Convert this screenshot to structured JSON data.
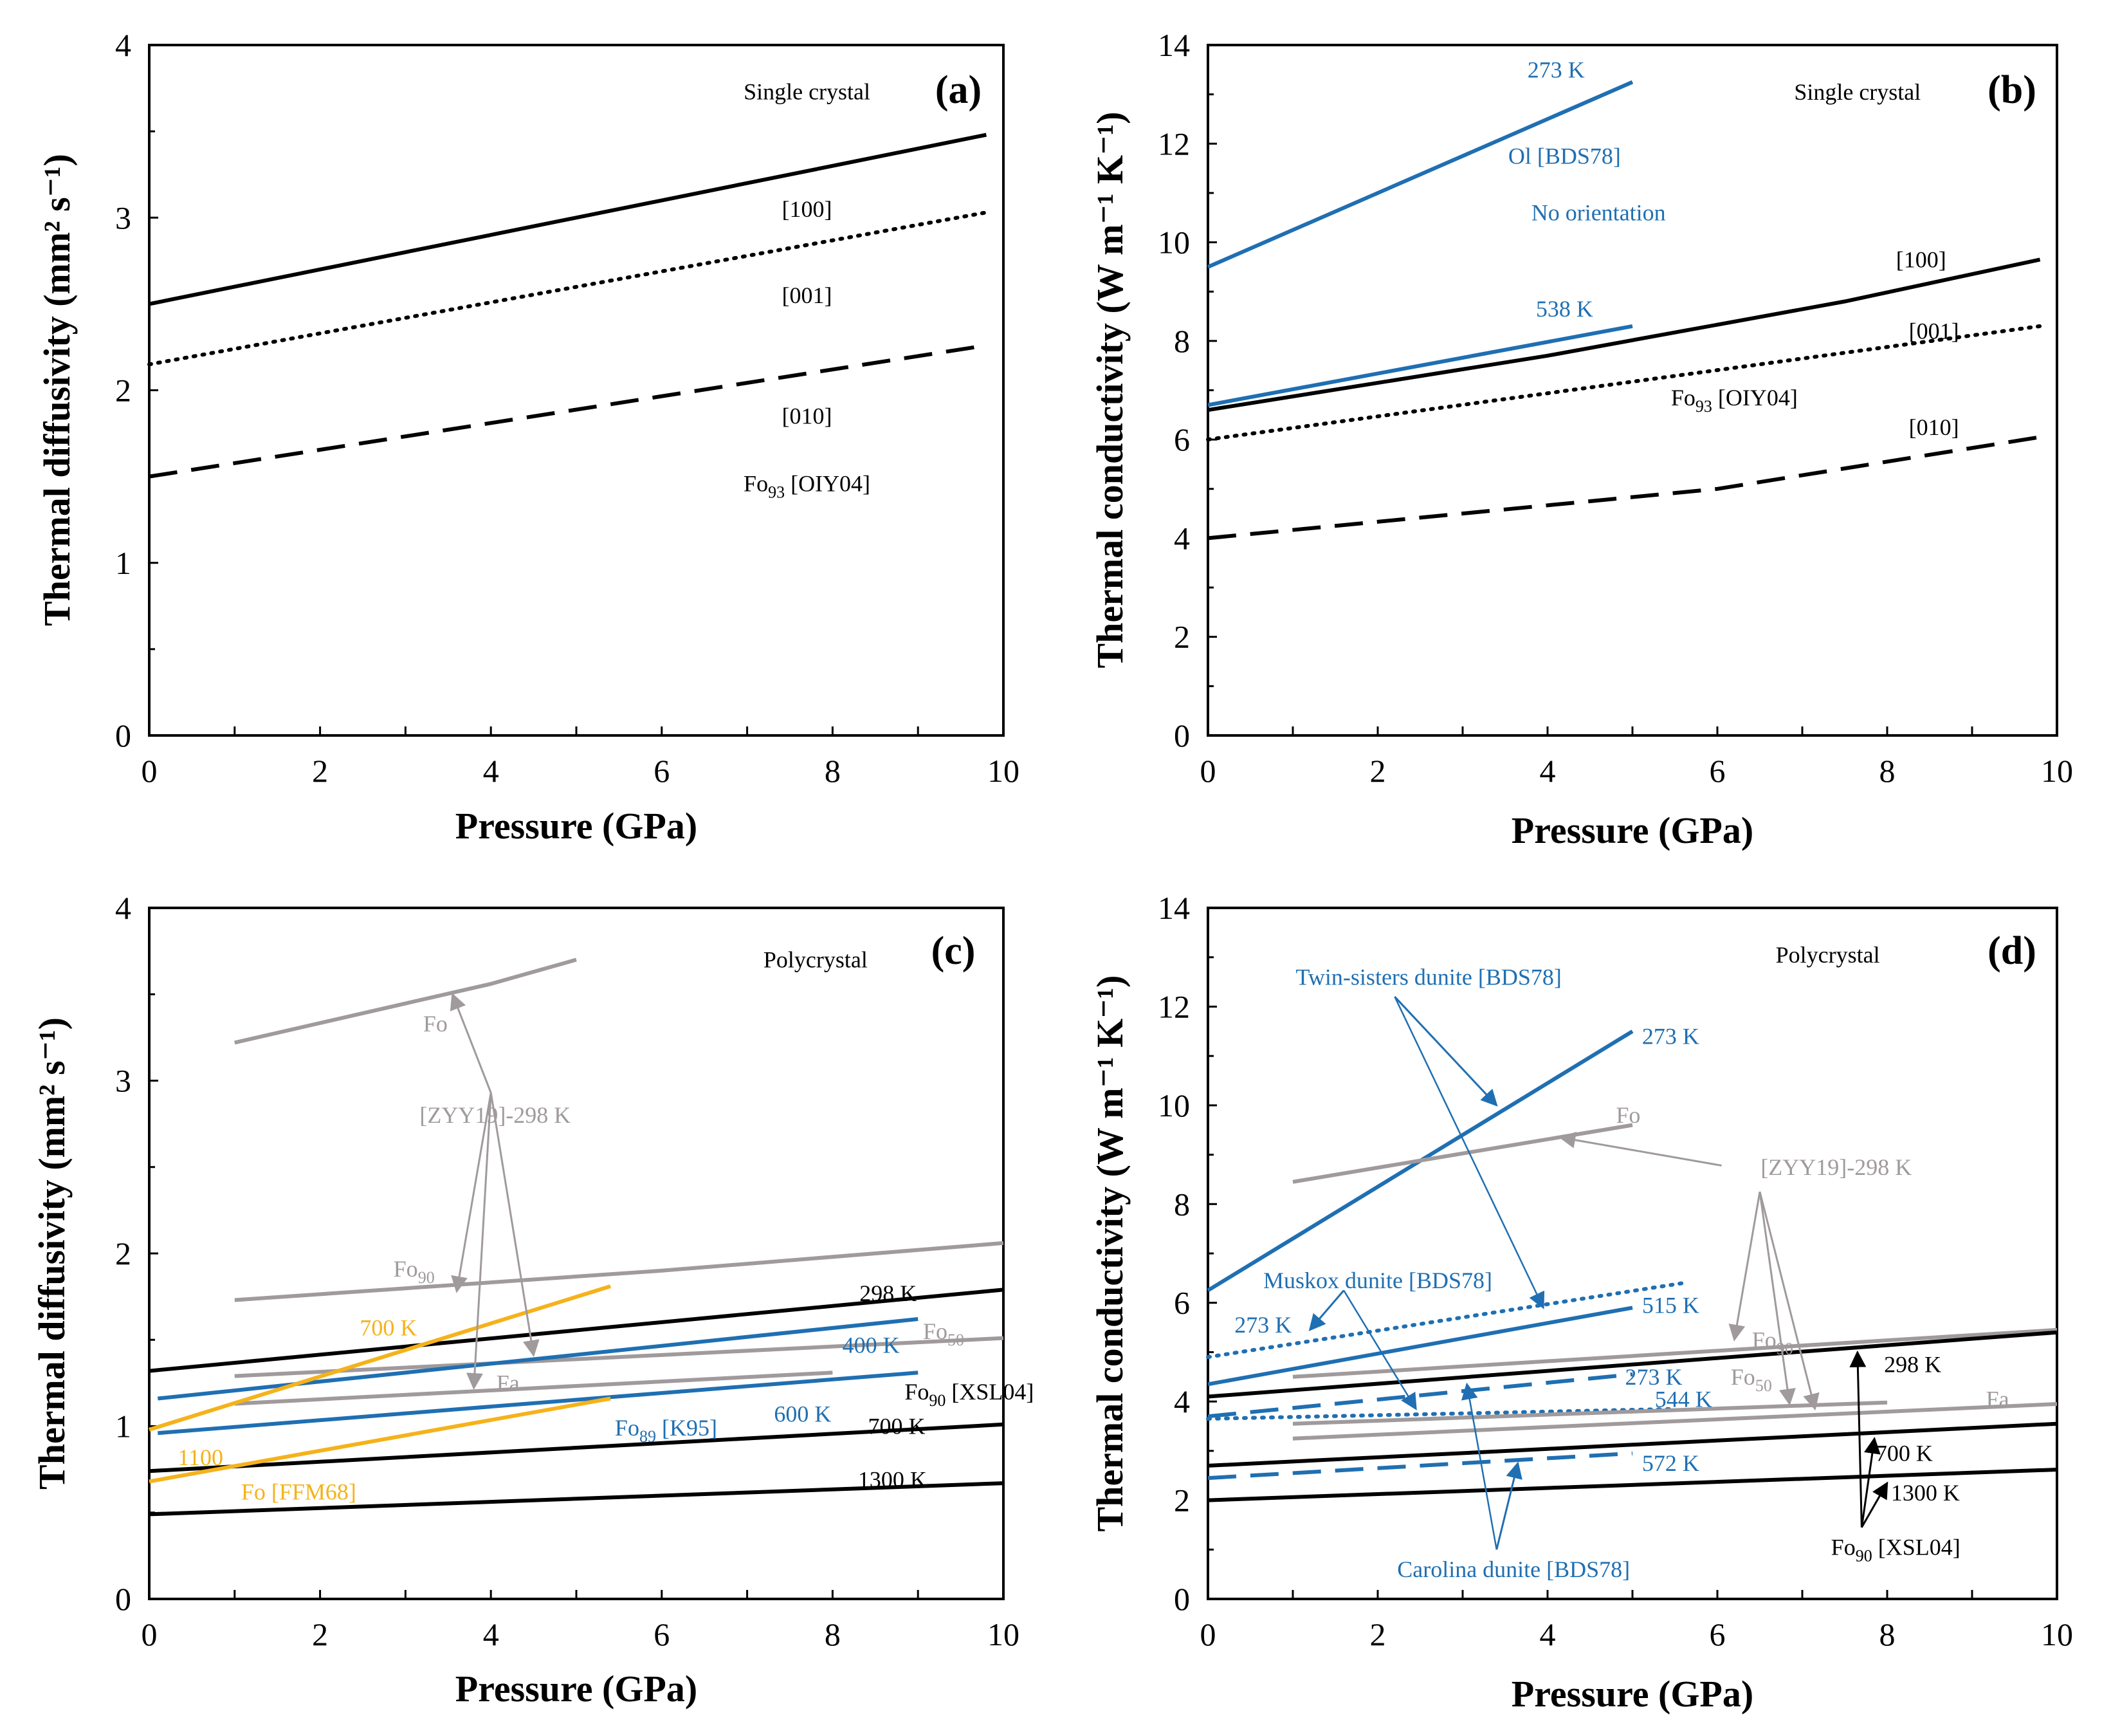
{
  "figure": {
    "colors": {
      "black": "#000000",
      "blue": "#1f6fb2",
      "gray": "#a09a9c",
      "orange": "#f5b21a"
    }
  },
  "chart_data": [
    {
      "type": "line",
      "panel": "(a)",
      "title": "Single crystal",
      "xlabel": "Pressure (GPa)",
      "ylabel": "Thermal diffusivity (mm² s⁻¹)",
      "xlim": [
        0,
        10
      ],
      "ylim": [
        0,
        4
      ],
      "xticks": [
        0,
        2,
        4,
        6,
        8,
        10
      ],
      "yticks": [
        0,
        1,
        2,
        3,
        4
      ],
      "series": [
        {
          "name": "[100]",
          "style": "solid",
          "color": "black",
          "x": [
            0,
            9.8
          ],
          "y": [
            2.5,
            3.48
          ]
        },
        {
          "name": "[001]",
          "style": "dotted",
          "color": "black",
          "x": [
            0,
            9.8
          ],
          "y": [
            2.15,
            3.03
          ]
        },
        {
          "name": "[010]",
          "style": "dashed",
          "color": "black",
          "x": [
            0,
            9.8
          ],
          "y": [
            1.5,
            2.26
          ]
        }
      ],
      "annotations": [
        {
          "text": "Single crystal",
          "x": 7.7,
          "y": 3.73,
          "color": "black"
        },
        {
          "text": "[100]",
          "x": 7.7,
          "y": 3.05,
          "color": "black"
        },
        {
          "text": "[001]",
          "x": 7.7,
          "y": 2.55,
          "color": "black"
        },
        {
          "text": "[010]",
          "x": 7.7,
          "y": 1.85,
          "color": "black"
        },
        {
          "text": "Fo",
          "sub": "93",
          "tail": " [OIY04]",
          "x": 7.7,
          "y": 1.46,
          "color": "black"
        }
      ],
      "arrows": []
    },
    {
      "type": "line",
      "panel": "(b)",
      "title": "Single crystal",
      "xlabel": "Pressure (GPa)",
      "ylabel": "Thermal conductivity (W m⁻¹ K⁻¹)",
      "xlim": [
        0,
        10
      ],
      "ylim": [
        0,
        14
      ],
      "xticks": [
        0,
        2,
        4,
        6,
        8,
        10
      ],
      "yticks": [
        0,
        2,
        4,
        6,
        8,
        10,
        12,
        14
      ],
      "series": [
        {
          "name": "Ol 273 K",
          "style": "solid",
          "color": "blue",
          "x": [
            0,
            5
          ],
          "y": [
            9.5,
            13.25
          ]
        },
        {
          "name": "Ol 538 K",
          "style": "solid",
          "color": "blue",
          "x": [
            0,
            5
          ],
          "y": [
            6.7,
            8.3
          ]
        },
        {
          "name": "[100]",
          "style": "solid",
          "color": "black",
          "x": [
            0,
            4,
            7.5,
            9.8
          ],
          "y": [
            6.6,
            7.7,
            8.8,
            9.65
          ]
        },
        {
          "name": "[001]",
          "style": "dotted",
          "color": "black",
          "x": [
            0,
            9.8
          ],
          "y": [
            6.0,
            8.3
          ]
        },
        {
          "name": "[010]",
          "style": "dashed",
          "color": "black",
          "x": [
            0,
            6,
            9.8
          ],
          "y": [
            4.0,
            5.0,
            6.05
          ]
        }
      ],
      "annotations": [
        {
          "text": "273 K",
          "x": 4.1,
          "y": 13.5,
          "color": "blue"
        },
        {
          "text": "Ol [BDS78]",
          "x": 4.2,
          "y": 11.75,
          "color": "blue"
        },
        {
          "text": "No orientation",
          "x": 4.6,
          "y": 10.6,
          "color": "blue"
        },
        {
          "text": "538 K",
          "x": 4.2,
          "y": 8.65,
          "color": "blue"
        },
        {
          "text": "Single crystal",
          "x": 7.65,
          "y": 13.05,
          "color": "black"
        },
        {
          "text": "[100]",
          "x": 8.4,
          "y": 9.65,
          "color": "black"
        },
        {
          "text": "[001]",
          "x": 8.55,
          "y": 8.2,
          "color": "black"
        },
        {
          "text": "Fo",
          "sub": "93",
          "tail": " [OIY04]",
          "x": 6.2,
          "y": 6.85,
          "color": "black"
        },
        {
          "text": "[010]",
          "x": 8.55,
          "y": 6.25,
          "color": "black"
        }
      ],
      "arrows": []
    },
    {
      "type": "line",
      "panel": "(c)",
      "title": "Polycrystal",
      "xlabel": "Pressure (GPa)",
      "ylabel": "Thermal diffusivity (mm² s⁻¹)",
      "xlim": [
        0,
        10
      ],
      "ylim": [
        0,
        4
      ],
      "xticks": [
        0,
        2,
        4,
        6,
        8,
        10
      ],
      "yticks": [
        0,
        1,
        2,
        3,
        4
      ],
      "series": [
        {
          "name": "Fo [ZYY19] 298 K",
          "style": "solid",
          "color": "gray",
          "x": [
            1,
            4,
            5
          ],
          "y": [
            3.22,
            3.56,
            3.7
          ]
        },
        {
          "name": "Fo90 [ZYY19] 298 K",
          "style": "solid",
          "color": "gray",
          "x": [
            1,
            6,
            10
          ],
          "y": [
            1.73,
            1.9,
            2.06
          ]
        },
        {
          "name": "Fo50 [ZYY19] 298 K",
          "style": "solid",
          "color": "gray",
          "x": [
            1,
            10
          ],
          "y": [
            1.29,
            1.51
          ]
        },
        {
          "name": "Fa [ZYY19] 298 K",
          "style": "solid",
          "color": "gray",
          "x": [
            1,
            8
          ],
          "y": [
            1.13,
            1.31
          ]
        },
        {
          "name": "Fo90 [XSL04] 298 K",
          "style": "solid",
          "color": "black",
          "x": [
            0,
            10
          ],
          "y": [
            1.32,
            1.79
          ]
        },
        {
          "name": "Fo90 [XSL04] 700 K",
          "style": "solid",
          "color": "black",
          "x": [
            0,
            10
          ],
          "y": [
            0.74,
            1.01
          ]
        },
        {
          "name": "Fo90 [XSL04] 1300 K",
          "style": "solid",
          "color": "black",
          "x": [
            0,
            10
          ],
          "y": [
            0.49,
            0.67
          ]
        },
        {
          "name": "Fo89 [K95] 400 K",
          "style": "solid",
          "color": "blue",
          "x": [
            0.1,
            9
          ],
          "y": [
            1.16,
            1.62
          ]
        },
        {
          "name": "Fo89 [K95] 600 K",
          "style": "solid",
          "color": "blue",
          "x": [
            0.1,
            9
          ],
          "y": [
            0.96,
            1.31
          ]
        },
        {
          "name": "Fo [FFM68] 700 K",
          "style": "solid",
          "color": "orange",
          "x": [
            0,
            5.4
          ],
          "y": [
            0.98,
            1.81
          ]
        },
        {
          "name": "Fo [FFM68] 1100 K",
          "style": "solid",
          "color": "orange",
          "x": [
            0,
            5.4
          ],
          "y": [
            0.68,
            1.16
          ]
        }
      ],
      "annotations": [
        {
          "text": "Polycrystal",
          "x": 7.8,
          "y": 3.7,
          "color": "black"
        },
        {
          "text": "Fo",
          "x": 3.35,
          "y": 3.33,
          "color": "gray"
        },
        {
          "text": "[ZYY19]-298 K",
          "x": 4.05,
          "y": 2.8,
          "color": "gray"
        },
        {
          "text": "Fo",
          "sub": "90",
          "tail": "",
          "x": 3.1,
          "y": 1.91,
          "color": "gray"
        },
        {
          "text": "298 K",
          "x": 8.65,
          "y": 1.77,
          "color": "black"
        },
        {
          "text": "700 K",
          "x": 2.8,
          "y": 1.57,
          "color": "orange"
        },
        {
          "text": "Fo",
          "sub": "50",
          "tail": "",
          "x": 9.3,
          "y": 1.55,
          "color": "gray"
        },
        {
          "text": "400 K",
          "x": 8.45,
          "y": 1.47,
          "color": "blue"
        },
        {
          "text": "Fa",
          "x": 4.2,
          "y": 1.25,
          "color": "gray"
        },
        {
          "text": "Fo",
          "sub": "90",
          "tail": " [XSL04]",
          "x": 9.6,
          "y": 1.2,
          "color": "black"
        },
        {
          "text": "600 K",
          "x": 7.65,
          "y": 1.07,
          "color": "blue"
        },
        {
          "text": "700 K",
          "x": 8.75,
          "y": 1.0,
          "color": "black"
        },
        {
          "text": "Fo",
          "sub": "89",
          "tail": " [K95]",
          "x": 6.05,
          "y": 0.99,
          "color": "blue"
        },
        {
          "text": "1100",
          "x": 0.6,
          "y": 0.82,
          "color": "orange"
        },
        {
          "text": "Fo [FFM68]",
          "x": 1.75,
          "y": 0.62,
          "color": "orange"
        },
        {
          "text": "1300 K",
          "x": 8.7,
          "y": 0.69,
          "color": "black"
        }
      ],
      "arrows": [
        {
          "from": [
            4.0,
            2.93
          ],
          "to": [
            3.55,
            3.5
          ],
          "color": "gray"
        },
        {
          "from": [
            4.0,
            2.93
          ],
          "to": [
            3.6,
            1.78
          ],
          "color": "gray"
        },
        {
          "from": [
            4.0,
            2.93
          ],
          "to": [
            3.8,
            1.22
          ],
          "color": "gray"
        },
        {
          "from": [
            4.0,
            2.93
          ],
          "to": [
            4.5,
            1.41
          ],
          "color": "gray"
        }
      ]
    },
    {
      "type": "line",
      "panel": "(d)",
      "title": "Polycrystal",
      "xlabel": "Pressure (GPa)",
      "ylabel": "Thermal conductivity (W m⁻¹ K⁻¹)",
      "xlim": [
        0,
        10
      ],
      "ylim": [
        0,
        14
      ],
      "xticks": [
        0,
        2,
        4,
        6,
        8,
        10
      ],
      "yticks": [
        0,
        2,
        4,
        6,
        8,
        10,
        12,
        14
      ],
      "series": [
        {
          "name": "Twin-sisters dunite [BDS78] 273 K",
          "style": "solid",
          "color": "blue",
          "x": [
            0,
            5
          ],
          "y": [
            6.25,
            11.5
          ]
        },
        {
          "name": "Twin-sisters dunite [BDS78] 515 K",
          "style": "solid",
          "color": "blue",
          "x": [
            0,
            5
          ],
          "y": [
            4.35,
            5.9
          ]
        },
        {
          "name": "Muskox dunite [BDS78] 273 K",
          "style": "dotted",
          "color": "blue",
          "x": [
            0,
            5.6
          ],
          "y": [
            4.9,
            6.4
          ]
        },
        {
          "name": "Muskox dunite [BDS78] 544 K",
          "style": "dotted",
          "color": "blue",
          "x": [
            0,
            5.5
          ],
          "y": [
            3.65,
            3.85
          ]
        },
        {
          "name": "Carolina dunite [BDS78] 273 K",
          "style": "dashed",
          "color": "blue",
          "x": [
            0,
            5
          ],
          "y": [
            3.7,
            4.55
          ]
        },
        {
          "name": "Carolina dunite [BDS78] 572 K",
          "style": "dashed",
          "color": "blue",
          "x": [
            0,
            5
          ],
          "y": [
            2.45,
            2.95
          ]
        },
        {
          "name": "Fo [ZYY19] 298 K",
          "style": "solid",
          "color": "gray",
          "x": [
            1,
            5
          ],
          "y": [
            8.45,
            9.6
          ]
        },
        {
          "name": "Fo90 [ZYY19] 298 K",
          "style": "solid",
          "color": "gray",
          "x": [
            1,
            10
          ],
          "y": [
            4.5,
            5.45
          ]
        },
        {
          "name": "Fo50 [ZYY19] 298 K",
          "style": "solid",
          "color": "gray",
          "x": [
            1,
            8
          ],
          "y": [
            3.55,
            3.98
          ]
        },
        {
          "name": "Fa [ZYY19] 298 K",
          "style": "solid",
          "color": "gray",
          "x": [
            1,
            10
          ],
          "y": [
            3.25,
            3.95
          ]
        },
        {
          "name": "Fo90 [XSL04] 298 K",
          "style": "solid",
          "color": "black",
          "x": [
            0,
            10
          ],
          "y": [
            4.1,
            5.4
          ]
        },
        {
          "name": "Fo90 [XSL04] 700 K",
          "style": "solid",
          "color": "black",
          "x": [
            0,
            10
          ],
          "y": [
            2.7,
            3.55
          ]
        },
        {
          "name": "Fo90 [XSL04] 1300 K",
          "style": "solid",
          "color": "black",
          "x": [
            0,
            10
          ],
          "y": [
            2.0,
            2.62
          ]
        }
      ],
      "annotations": [
        {
          "text": "Polycrystal",
          "x": 7.3,
          "y": 13.05,
          "color": "black"
        },
        {
          "text": "Twin-sisters dunite [BDS78]",
          "x": 2.6,
          "y": 12.6,
          "color": "blue"
        },
        {
          "text": "273 K",
          "x": 5.45,
          "y": 11.4,
          "color": "blue"
        },
        {
          "text": "Fo",
          "x": 4.95,
          "y": 9.8,
          "color": "gray"
        },
        {
          "text": "[ZYY19]-298 K",
          "x": 7.4,
          "y": 8.75,
          "color": "gray"
        },
        {
          "text": "Muskox dunite [BDS78]",
          "x": 2.0,
          "y": 6.45,
          "color": "blue"
        },
        {
          "text": "273 K",
          "x": 0.65,
          "y": 5.55,
          "color": "blue"
        },
        {
          "text": "515 K",
          "x": 5.45,
          "y": 5.95,
          "color": "blue"
        },
        {
          "text": "Fo",
          "sub": "90",
          "tail": "",
          "x": 6.65,
          "y": 5.25,
          "color": "gray"
        },
        {
          "text": "298 K",
          "x": 8.3,
          "y": 4.75,
          "color": "black"
        },
        {
          "text": "273 K",
          "x": 5.25,
          "y": 4.5,
          "color": "blue"
        },
        {
          "text": "Fo",
          "sub": "50",
          "tail": "",
          "x": 6.4,
          "y": 4.5,
          "color": "gray"
        },
        {
          "text": "544 K",
          "x": 5.6,
          "y": 4.05,
          "color": "blue"
        },
        {
          "text": "Fa",
          "x": 9.3,
          "y": 4.05,
          "color": "gray"
        },
        {
          "text": "700 K",
          "x": 8.2,
          "y": 2.95,
          "color": "black"
        },
        {
          "text": "572 K",
          "x": 5.45,
          "y": 2.75,
          "color": "blue"
        },
        {
          "text": "1300 K",
          "x": 8.45,
          "y": 2.15,
          "color": "black"
        },
        {
          "text": "Fo",
          "sub": "90",
          "tail": " [XSL04]",
          "x": 8.1,
          "y": 1.05,
          "color": "black"
        },
        {
          "text": "Carolina dunite [BDS78]",
          "x": 3.6,
          "y": 0.6,
          "color": "blue"
        }
      ],
      "arrows": [
        {
          "from": [
            2.2,
            12.2
          ],
          "to": [
            3.4,
            10.0
          ],
          "color": "blue"
        },
        {
          "from": [
            2.2,
            12.2
          ],
          "to": [
            3.95,
            5.9
          ],
          "color": "blue",
          "thin": true
        },
        {
          "from": [
            1.6,
            6.25
          ],
          "to": [
            1.2,
            5.45
          ],
          "color": "blue"
        },
        {
          "from": [
            1.6,
            6.25
          ],
          "to": [
            2.45,
            3.85
          ],
          "color": "blue",
          "thin": true
        },
        {
          "from": [
            3.4,
            1.0
          ],
          "to": [
            3.05,
            4.35
          ],
          "color": "blue",
          "thin": true
        },
        {
          "from": [
            3.4,
            1.0
          ],
          "to": [
            3.65,
            2.75
          ],
          "color": "blue"
        },
        {
          "from": [
            6.05,
            8.78
          ],
          "to": [
            4.15,
            9.35
          ],
          "color": "gray"
        },
        {
          "from": [
            6.5,
            8.25
          ],
          "to": [
            6.2,
            5.25
          ],
          "color": "gray"
        },
        {
          "from": [
            6.5,
            8.25
          ],
          "to": [
            6.85,
            3.95
          ],
          "color": "gray"
        },
        {
          "from": [
            6.5,
            8.25
          ],
          "to": [
            7.15,
            3.85
          ],
          "color": "gray"
        },
        {
          "from": [
            7.7,
            1.45
          ],
          "to": [
            7.65,
            5.0
          ],
          "color": "black"
        },
        {
          "from": [
            7.7,
            1.45
          ],
          "to": [
            7.85,
            3.25
          ],
          "color": "black"
        },
        {
          "from": [
            7.7,
            1.45
          ],
          "to": [
            8.0,
            2.35
          ],
          "color": "black"
        }
      ]
    }
  ]
}
